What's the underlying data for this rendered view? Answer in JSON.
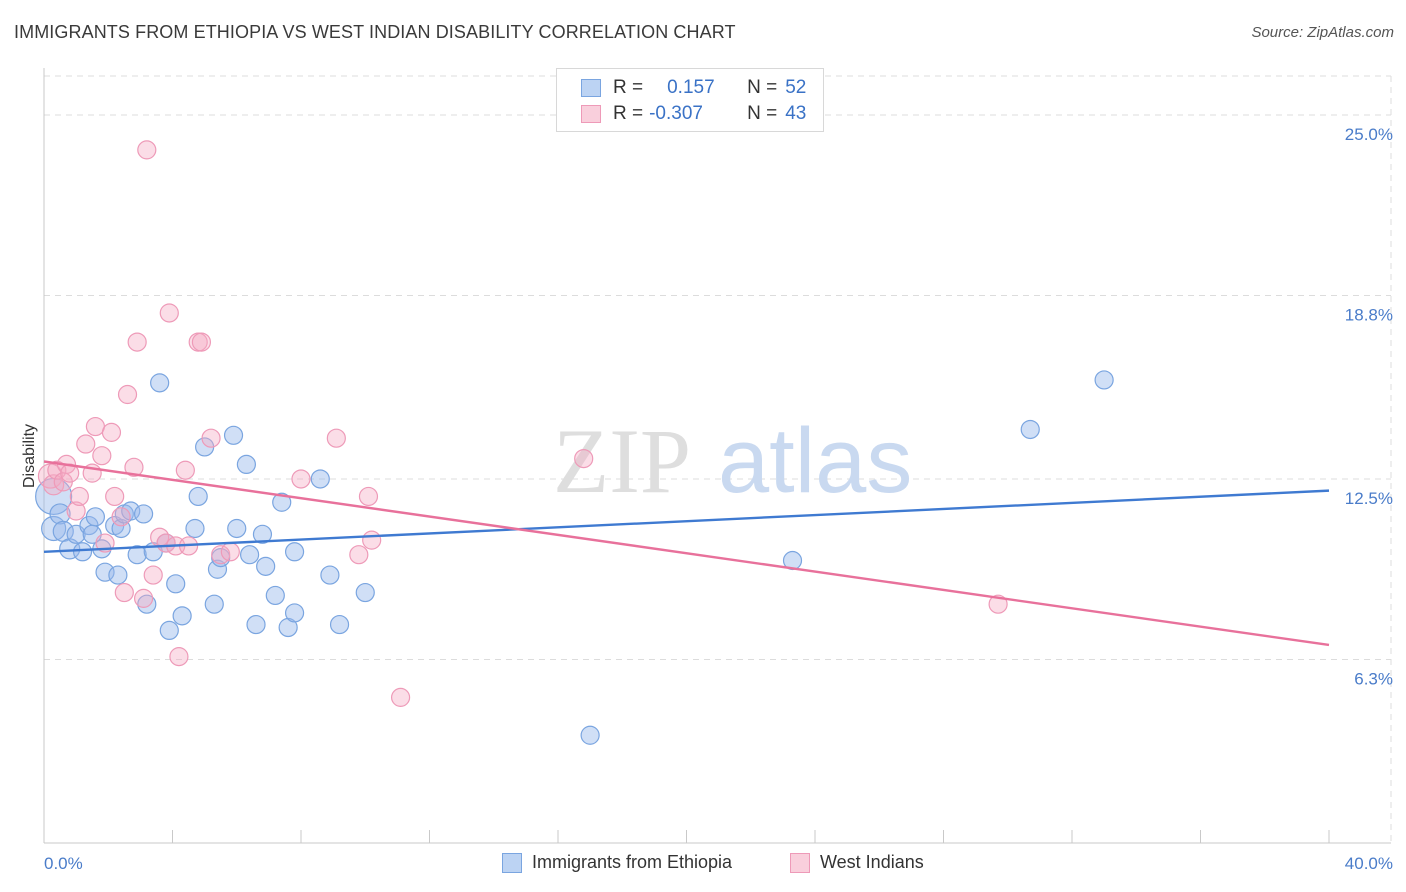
{
  "title": "IMMIGRANTS FROM ETHIOPIA VS WEST INDIAN DISABILITY CORRELATION CHART",
  "source": "Source: ZipAtlas.com",
  "watermark": {
    "zip": "ZIP",
    "atlas": "atlas"
  },
  "legend": {
    "rows": [
      {
        "r_label": "R =",
        "r_value": "0.157",
        "n_label": "N =",
        "n_value": "52",
        "color": "#7aa5e0"
      },
      {
        "r_label": "R =",
        "r_value": "-0.307",
        "n_label": "N =",
        "n_value": "43",
        "color": "#ee9ab8"
      }
    ]
  },
  "chart_data": {
    "type": "scatter",
    "title": "IMMIGRANTS FROM ETHIOPIA VS WEST INDIAN DISABILITY CORRELATION CHART",
    "xlabel": "",
    "ylabel": "Disability",
    "xlim": [
      0,
      40
    ],
    "ylim": [
      0,
      26.2
    ],
    "x_tick_labels": [
      "0.0%",
      "40.0%"
    ],
    "y_ticks": [
      6.3,
      12.5,
      18.8,
      25.0
    ],
    "y_tick_labels": [
      "6.3%",
      "12.5%",
      "18.8%",
      "25.0%"
    ],
    "grid": true,
    "legend_position": "bottom",
    "series": [
      {
        "name": "Immigrants from Ethiopia",
        "color": "#3f7ad1",
        "trend": {
          "x": [
            0,
            40
          ],
          "y": [
            10.0,
            12.1
          ]
        },
        "points": [
          [
            0.3,
            11.9,
            18
          ],
          [
            0.3,
            10.8,
            12
          ],
          [
            0.5,
            11.3,
            10
          ],
          [
            0.6,
            10.7,
            10
          ],
          [
            0.8,
            10.1,
            10
          ],
          [
            1.0,
            10.6,
            9
          ],
          [
            1.2,
            10.0,
            9
          ],
          [
            1.4,
            10.9,
            9
          ],
          [
            1.6,
            11.2,
            9
          ],
          [
            1.8,
            10.1,
            9
          ],
          [
            1.9,
            9.3,
            9
          ],
          [
            2.2,
            10.9,
            9
          ],
          [
            2.3,
            9.2,
            9
          ],
          [
            2.4,
            10.8,
            9
          ],
          [
            2.5,
            11.3,
            9
          ],
          [
            2.7,
            11.4,
            9
          ],
          [
            2.9,
            9.9,
            9
          ],
          [
            3.1,
            11.3,
            9
          ],
          [
            3.2,
            8.2,
            9
          ],
          [
            3.4,
            10.0,
            9
          ],
          [
            3.6,
            15.8,
            9
          ],
          [
            3.8,
            10.3,
            9
          ],
          [
            3.9,
            7.3,
            9
          ],
          [
            4.1,
            8.9,
            9
          ],
          [
            4.3,
            7.8,
            9
          ],
          [
            4.7,
            10.8,
            9
          ],
          [
            4.8,
            11.9,
            9
          ],
          [
            5.0,
            13.6,
            9
          ],
          [
            5.3,
            8.2,
            9
          ],
          [
            5.4,
            9.4,
            9
          ],
          [
            5.5,
            9.8,
            9
          ],
          [
            5.9,
            14.0,
            9
          ],
          [
            6.0,
            10.8,
            9
          ],
          [
            6.3,
            13.0,
            9
          ],
          [
            6.4,
            9.9,
            9
          ],
          [
            6.6,
            7.5,
            9
          ],
          [
            6.8,
            10.6,
            9
          ],
          [
            6.9,
            9.5,
            9
          ],
          [
            7.2,
            8.5,
            9
          ],
          [
            7.4,
            11.7,
            9
          ],
          [
            7.6,
            7.4,
            9
          ],
          [
            7.8,
            7.9,
            9
          ],
          [
            7.8,
            10.0,
            9
          ],
          [
            8.6,
            12.5,
            9
          ],
          [
            8.9,
            9.2,
            9
          ],
          [
            9.2,
            7.5,
            9
          ],
          [
            10.0,
            8.6,
            9
          ],
          [
            17.0,
            3.7,
            9
          ],
          [
            23.3,
            9.7,
            9
          ],
          [
            30.7,
            14.2,
            9
          ],
          [
            33.0,
            15.9,
            9
          ],
          [
            1.5,
            10.6,
            9
          ]
        ]
      },
      {
        "name": "West Indians",
        "color": "#e8719b",
        "trend": {
          "x": [
            0,
            40
          ],
          "y": [
            13.1,
            6.8
          ]
        },
        "points": [
          [
            0.2,
            12.6,
            12
          ],
          [
            0.3,
            12.3,
            10
          ],
          [
            0.4,
            12.8,
            9
          ],
          [
            0.6,
            12.4,
            9
          ],
          [
            0.7,
            13.0,
            9
          ],
          [
            0.8,
            12.7,
            9
          ],
          [
            1.0,
            11.4,
            9
          ],
          [
            1.1,
            11.9,
            9
          ],
          [
            1.3,
            13.7,
            9
          ],
          [
            1.5,
            12.7,
            9
          ],
          [
            1.6,
            14.3,
            9
          ],
          [
            1.8,
            13.3,
            9
          ],
          [
            1.9,
            10.3,
            9
          ],
          [
            2.1,
            14.1,
            9
          ],
          [
            2.2,
            11.9,
            9
          ],
          [
            2.4,
            11.2,
            9
          ],
          [
            2.5,
            8.6,
            9
          ],
          [
            2.6,
            15.4,
            9
          ],
          [
            2.8,
            12.9,
            9
          ],
          [
            2.9,
            17.2,
            9
          ],
          [
            3.1,
            8.4,
            9
          ],
          [
            3.2,
            23.8,
            9
          ],
          [
            3.4,
            9.2,
            9
          ],
          [
            3.6,
            10.5,
            9
          ],
          [
            3.8,
            10.3,
            9
          ],
          [
            3.9,
            18.2,
            9
          ],
          [
            4.1,
            10.2,
            9
          ],
          [
            4.2,
            6.4,
            9
          ],
          [
            4.4,
            12.8,
            9
          ],
          [
            4.5,
            10.2,
            9
          ],
          [
            4.8,
            17.2,
            9
          ],
          [
            4.9,
            17.2,
            9
          ],
          [
            5.2,
            13.9,
            9
          ],
          [
            5.5,
            9.9,
            9
          ],
          [
            5.8,
            10.0,
            9
          ],
          [
            8.0,
            12.5,
            9
          ],
          [
            9.1,
            13.9,
            9
          ],
          [
            9.8,
            9.9,
            9
          ],
          [
            10.1,
            11.9,
            9
          ],
          [
            10.2,
            10.4,
            9
          ],
          [
            11.1,
            5.0,
            9
          ],
          [
            16.8,
            13.2,
            9
          ],
          [
            29.7,
            8.2,
            9
          ]
        ]
      }
    ]
  }
}
